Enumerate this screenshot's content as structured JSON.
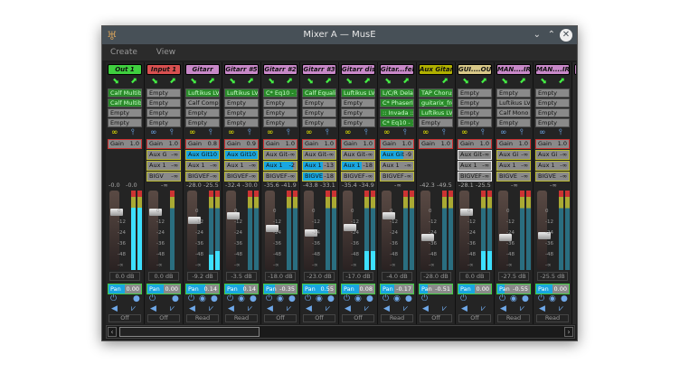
{
  "window": {
    "title": "Mixer A — MusE",
    "minimize_icon": "chevron-down",
    "maximize_icon": "chevron-up",
    "close_icon": "close-circle"
  },
  "menu": [
    "Create",
    "View"
  ],
  "strips": [
    {
      "name": "Out 1",
      "color": "#3fcf3f",
      "inserts": [
        [
          "Calf Multiba",
          1
        ],
        [
          "Calf Multiba",
          1
        ],
        [
          "Empty",
          0
        ],
        [
          "Empty",
          0
        ]
      ],
      "stereo": true,
      "gain": "1.0",
      "aux": [],
      "peaks": [
        "-0.0",
        "-0.0"
      ],
      "fader_db": 0.0,
      "fader": "0.0 dB",
      "meter_level": [
        1.0,
        1.0
      ],
      "pan": "0.00",
      "pan_value": 0.0,
      "automation": "Off",
      "in_route": true
    },
    {
      "name": "Input 1",
      "color": "#d85050",
      "inserts": [
        [
          "Empty",
          0
        ],
        [
          "Empty",
          0
        ],
        [
          "Empty",
          0
        ],
        [
          "Empty",
          0
        ]
      ],
      "stereo": false,
      "gain": "1.0",
      "aux": [
        [
          "Aux G",
          "-∞",
          0
        ],
        [
          "Aux 1",
          "-∞",
          0
        ],
        [
          "BIGV",
          "-∞",
          0
        ]
      ],
      "peaks": [
        "-∞"
      ],
      "fader_db": 0.0,
      "fader": "0.0 dB",
      "meter_level": [
        0
      ],
      "pan": "0.00",
      "pan_value": 0.0,
      "automation": "Off",
      "in_route": true
    },
    {
      "name": "Gitarr",
      "color": "#c888c8",
      "inserts": [
        [
          "Luftikus LV2",
          1
        ],
        [
          "Calf Compr",
          0
        ],
        [
          "Empty",
          0
        ],
        [
          "Empty",
          0
        ]
      ],
      "stereo": true,
      "gain": "0.8",
      "aux": [
        [
          "Aux Git",
          "10",
          1
        ],
        [
          "Aux 1",
          "-∞",
          0
        ],
        [
          "BIGVEF",
          "-∞",
          0
        ]
      ],
      "peaks": [
        "-28.0",
        "-25.5"
      ],
      "fader_db": -9.2,
      "fader": "-9.2 dB",
      "meter_level": [
        0.25,
        0.3
      ],
      "pan": "0.14",
      "pan_value": 0.14,
      "automation": "Read",
      "in_route": true
    },
    {
      "name": "Gitarr #5",
      "color": "#c888c8",
      "inserts": [
        [
          "Luftikus LV2",
          1
        ],
        [
          "Empty",
          0
        ],
        [
          "Empty",
          0
        ],
        [
          "Empty",
          0
        ]
      ],
      "stereo": true,
      "gain": "0.9",
      "aux": [
        [
          "Aux Git",
          "10",
          1
        ],
        [
          "Aux 1",
          "-∞",
          0
        ],
        [
          "BIGVEF",
          "-∞",
          0
        ]
      ],
      "peaks": [
        "-32.4",
        "-30.0"
      ],
      "fader_db": -3.5,
      "fader": "-3.5 dB",
      "meter_level": [
        0,
        0
      ],
      "pan": "0.14",
      "pan_value": 0.14,
      "automation": "Read",
      "in_route": true
    },
    {
      "name": "Gitarr #2",
      "color": "#c888c8",
      "inserts": [
        [
          "C* Eq10 - 1",
          1
        ],
        [
          "Empty",
          0
        ],
        [
          "Empty",
          0
        ],
        [
          "Empty",
          0
        ]
      ],
      "stereo": true,
      "gain": "1.0",
      "aux": [
        [
          "Aux Git",
          "-∞",
          0
        ],
        [
          "Aux 1",
          "-2",
          1
        ],
        [
          "BIGVEF",
          "-∞",
          0
        ]
      ],
      "peaks": [
        "-35.6",
        "-41.9"
      ],
      "fader_db": -18.0,
      "fader": "-18.0 dB",
      "meter_level": [
        0,
        0
      ],
      "pan": "-0.35",
      "pan_value": -0.35,
      "automation": "Off",
      "in_route": true
    },
    {
      "name": "Gitarr #3",
      "color": "#c888c8",
      "inserts": [
        [
          "Calf Equaliz",
          1
        ],
        [
          "Empty",
          0
        ],
        [
          "Empty",
          0
        ],
        [
          "Empty",
          0
        ]
      ],
      "stereo": true,
      "gain": "1.0",
      "aux": [
        [
          "Aux Git",
          "-∞",
          0
        ],
        [
          "Aux 1",
          "-13",
          1
        ],
        [
          "BIGVE",
          "-18",
          1
        ]
      ],
      "peaks": [
        "-43.8",
        "-33.1"
      ],
      "fader_db": -23.0,
      "fader": "-23.0 dB",
      "meter_level": [
        0,
        0
      ],
      "pan": "0.55",
      "pan_value": 0.55,
      "automation": "Off",
      "in_route": true
    },
    {
      "name": "Gitarr dist",
      "color": "#c888c8",
      "inserts": [
        [
          "Luftikus LV2",
          1
        ],
        [
          "Empty",
          0
        ],
        [
          "Empty",
          0
        ],
        [
          "Empty",
          0
        ]
      ],
      "stereo": true,
      "gain": "1.0",
      "aux": [
        [
          "Aux Git",
          "-∞",
          0
        ],
        [
          "Aux 1",
          "-18",
          1
        ],
        [
          "BIGVEF",
          "-∞",
          0
        ]
      ],
      "peaks": [
        "-35.4",
        "-34.9"
      ],
      "fader_db": -17.0,
      "fader": "-17.0 dB",
      "meter_level": [
        0.3,
        0.3
      ],
      "pan": "0.08",
      "pan_value": 0.08,
      "automation": "Off",
      "in_route": true
    },
    {
      "name": "Gitar...fekt",
      "color": "#c888c8",
      "inserts": [
        [
          "L/C/R Delay",
          1
        ],
        [
          "C* PhaserII",
          1
        ],
        [
          ":: Invada :: I",
          1
        ],
        [
          "C* Eq10 - 1",
          1
        ]
      ],
      "stereo": true,
      "gain": "1.0",
      "aux": [
        [
          "Aux Git",
          "-9",
          1
        ],
        [
          "Aux 1",
          "-∞",
          0
        ],
        [
          "BIGVEF",
          "-∞",
          0
        ]
      ],
      "peaks": [
        "-∞"
      ],
      "fader_db": -4.0,
      "fader": "-4.0 dB",
      "meter_level": [
        0,
        0
      ],
      "pan": "-0.17",
      "pan_value": -0.17,
      "automation": "Read",
      "in_route": true
    },
    {
      "name": "Aux Gitarr",
      "color": "#b0b000",
      "inserts": [
        [
          "TAP Chorus",
          1
        ],
        [
          "guitarix_fre",
          1
        ],
        [
          "Luftikus LV2",
          1
        ],
        [
          "Empty",
          0
        ]
      ],
      "stereo": true,
      "gain": "1.0",
      "aux": [],
      "peaks": [
        "-42.3",
        "-49.5"
      ],
      "fader_db": -28.0,
      "fader": "-28.0 dB",
      "meter_level": [
        0,
        0
      ],
      "pan": "-0.51",
      "pan_value": -0.51,
      "automation": "Off",
      "in_route": false
    },
    {
      "name": "GUI....OUP",
      "color": "#d8c888",
      "inserts": [
        [
          "Empty",
          0
        ],
        [
          "Empty",
          0
        ],
        [
          "Empty",
          0
        ],
        [
          "Empty",
          0
        ]
      ],
      "stereo": true,
      "gain": "1.0",
      "aux": [
        [
          "Aux Git",
          "-∞",
          0
        ],
        [
          "Aux 1",
          "-∞",
          0
        ],
        [
          "BIGVEF",
          "-∞",
          0
        ]
      ],
      "aux_white": true,
      "peaks": [
        "-28.1",
        "-25.5"
      ],
      "fader_db": 0.0,
      "fader": "0.0 dB",
      "meter_level": [
        0.3,
        0.3
      ],
      "pan": "0.00",
      "pan_value": 0.0,
      "automation": "Off",
      "in_route": true
    },
    {
      "name": "MAN....IR1",
      "color": "#c888c8",
      "inserts": [
        [
          "Empty",
          0
        ],
        [
          "Luftikus LV",
          0
        ],
        [
          "Calf Mono",
          0
        ],
        [
          "Empty",
          0
        ]
      ],
      "stereo": false,
      "gain": "1.0",
      "aux": [
        [
          "Aux Gi",
          "-∞",
          0
        ],
        [
          "Aux 1",
          "-∞",
          0
        ],
        [
          "BIGVE",
          "-∞",
          0
        ]
      ],
      "peaks": [
        "-∞"
      ],
      "fader_db": -27.5,
      "fader": "-27.5 dB",
      "meter_level": [
        0,
        0
      ],
      "pan": "-0.55",
      "pan_value": -0.55,
      "automation": "Read",
      "in_route": true
    },
    {
      "name": "MAN....IR2",
      "color": "#c888c8",
      "inserts": [
        [
          "Empty",
          0
        ],
        [
          "Empty",
          0
        ],
        [
          "Empty",
          0
        ],
        [
          "Empty",
          0
        ]
      ],
      "stereo": false,
      "gain": "1.0",
      "aux": [
        [
          "Aux Gi",
          "-∞",
          0
        ],
        [
          "Aux 1",
          "-∞",
          0
        ],
        [
          "BIGVE",
          "-∞",
          0
        ]
      ],
      "peaks": [
        "-∞"
      ],
      "fader_db": -25.5,
      "fader": "-25.5 dB",
      "meter_level": [
        0,
        0
      ],
      "pan": "0.00",
      "pan_value": 0.0,
      "automation": "Read",
      "in_route": true
    }
  ],
  "labels": {
    "gain": "Gain",
    "pan": "Pan",
    "ticks": [
      "0",
      "-12",
      "-24",
      "-36",
      "-48",
      "-∞"
    ]
  }
}
